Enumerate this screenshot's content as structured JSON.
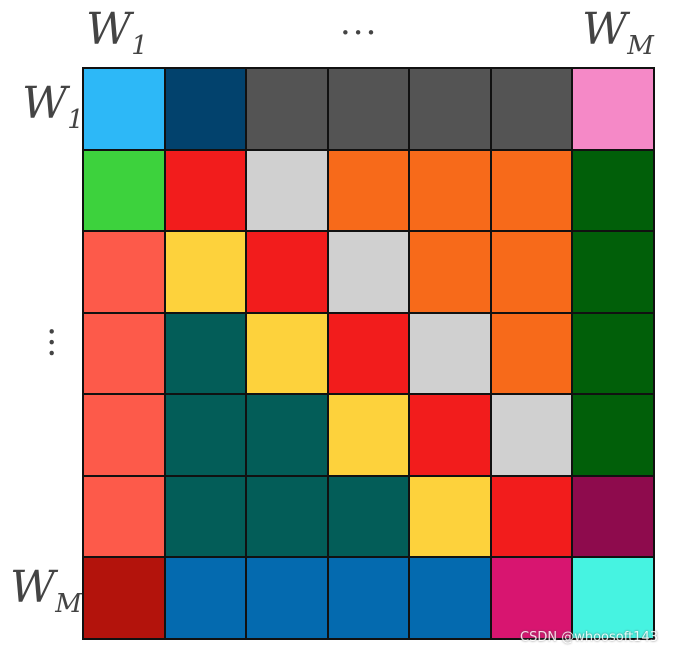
{
  "labels": {
    "top_first": "W",
    "top_first_sub": "1",
    "top_ellipsis": "···",
    "top_last": "W",
    "top_last_sub": "M",
    "left_first": "W",
    "left_first_sub": "1",
    "left_ellipsis": "···",
    "left_last": "W",
    "left_last_sub": "M"
  },
  "grid": {
    "rows": [
      [
        "#2db8f7",
        "#02426d",
        "#545454",
        "#545454",
        "#545454",
        "#545454",
        "#f589c7"
      ],
      [
        "#3dd23d",
        "#f21c1c",
        "#d0d0d0",
        "#f76a1a",
        "#f76a1a",
        "#f76a1a",
        "#015f09"
      ],
      [
        "#fd5a4a",
        "#fdd23c",
        "#f21c1c",
        "#d0d0d0",
        "#f76a1a",
        "#f76a1a",
        "#015f09"
      ],
      [
        "#fd5a4a",
        "#035d58",
        "#fdd23c",
        "#f21c1c",
        "#d0d0d0",
        "#f76a1a",
        "#015f09"
      ],
      [
        "#fd5a4a",
        "#035d58",
        "#035d58",
        "#fdd23c",
        "#f21c1c",
        "#d0d0d0",
        "#015f09"
      ],
      [
        "#fd5a4a",
        "#035d58",
        "#035d58",
        "#035d58",
        "#fdd23c",
        "#f21c1c",
        "#8e0b4d"
      ],
      [
        "#b3130c",
        "#046aaf",
        "#046aaf",
        "#046aaf",
        "#046aaf",
        "#d81570",
        "#46f3e1"
      ]
    ]
  },
  "watermark": "CSDN @whoosoft143"
}
